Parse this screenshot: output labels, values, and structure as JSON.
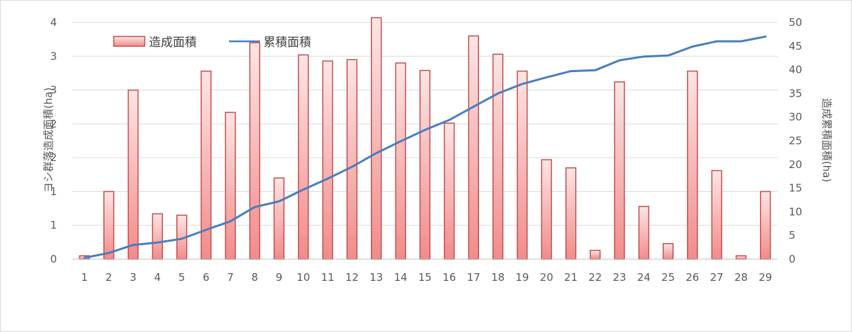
{
  "chart_data": {
    "type": "bar+line",
    "categories": [
      "1",
      "2",
      "3",
      "4",
      "5",
      "6",
      "7",
      "8",
      "9",
      "10",
      "11",
      "12",
      "13",
      "14",
      "15",
      "16",
      "17",
      "18",
      "19",
      "20",
      "21",
      "22",
      "23",
      "24",
      "25",
      "26",
      "27",
      "28",
      "29"
    ],
    "series": [
      {
        "name": "造成面積",
        "type": "bar",
        "axis": "left",
        "color": "#c0504d",
        "values": [
          0.05,
          1.0,
          2.5,
          0.67,
          0.65,
          2.78,
          2.17,
          3.2,
          1.2,
          3.02,
          2.93,
          2.95,
          3.57,
          2.9,
          2.79,
          2.01,
          3.3,
          3.03,
          2.78,
          1.47,
          1.35,
          0.13,
          2.62,
          0.78,
          0.23,
          2.78,
          1.31,
          0.05,
          1.0
        ]
      },
      {
        "name": "累積面積",
        "type": "line",
        "axis": "right",
        "color": "#4a7ebb",
        "values": [
          0.3,
          1.3,
          3.0,
          3.5,
          4.3,
          6.2,
          8.0,
          11.0,
          12.2,
          14.7,
          17.0,
          19.5,
          22.4,
          24.9,
          27.3,
          29.4,
          32.2,
          35.0,
          37.0,
          38.4,
          39.7,
          39.9,
          42.0,
          42.8,
          43.0,
          44.9,
          46.0,
          46.0,
          47.0
        ]
      }
    ],
    "y_left": {
      "label": "ヨシ群落造成面積(ha)",
      "ylim": [
        0,
        3.5
      ],
      "tick_labels": [
        "0",
        "1",
        "1",
        "2",
        "2",
        "3",
        "3",
        "4"
      ]
    },
    "y_right": {
      "label": "造成累積面積(ha)",
      "ylim": [
        0,
        50
      ],
      "tick_labels": [
        "0",
        "5",
        "10",
        "15",
        "20",
        "25",
        "30",
        "35",
        "40",
        "45",
        "50"
      ]
    },
    "grid": true,
    "legend_position": "top-left"
  }
}
